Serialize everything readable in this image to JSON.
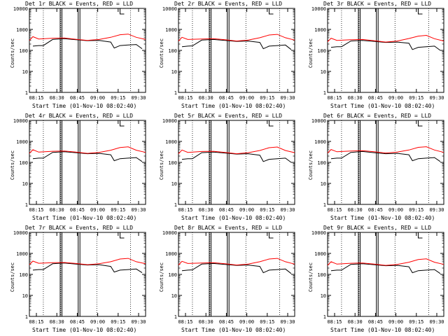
{
  "figure": {
    "y_label": "Counts/sec",
    "x_label": "Start Time (01-Nov-10 08:02:40)"
  },
  "colors": {
    "events": "#000000",
    "lld": "#ff0000",
    "axis": "#000000"
  },
  "chart_data": [
    {
      "type": "line",
      "title": "Det 1r BLACK = Events, RED = LLD",
      "xlabel": "Start Time (01-Nov-10 08:02:40)",
      "ylabel": "Counts/sec",
      "yscale": "log",
      "ylim": [
        1,
        10000
      ],
      "ytick_labels": [
        "1",
        "10",
        "100",
        "1000",
        "10000"
      ],
      "xtick_labels": [
        "08:15",
        "08:30",
        "08:45",
        "09:00",
        "09:15",
        "09:30"
      ],
      "series": [
        {
          "name": "Events",
          "color": "#000000",
          "x": [
            0.03,
            0.08,
            0.12,
            0.2,
            0.3,
            0.4,
            0.5,
            0.6,
            0.7,
            0.73,
            0.78,
            0.85,
            0.92,
            0.97
          ],
          "y": [
            160,
            170,
            170,
            330,
            360,
            320,
            290,
            300,
            250,
            130,
            170,
            180,
            190,
            120
          ]
        },
        {
          "name": "LLD",
          "color": "#ff0000",
          "x": [
            0.0,
            0.03,
            0.08,
            0.2,
            0.3,
            0.4,
            0.5,
            0.6,
            0.7,
            0.78,
            0.85,
            0.92,
            1.0
          ],
          "y": [
            300,
            450,
            350,
            380,
            390,
            340,
            300,
            330,
            420,
            560,
            600,
            420,
            330
          ]
        }
      ]
    },
    {
      "type": "line",
      "title": "Det 2r BLACK = Events, RED = LLD",
      "xlabel": "Start Time (01-Nov-10 08:02:40)",
      "ylabel": "Counts/sec",
      "yscale": "log",
      "ylim": [
        1,
        10000
      ],
      "ytick_labels": [
        "1",
        "10",
        "100",
        "1000",
        "10000"
      ],
      "xtick_labels": [
        "08:15",
        "08:30",
        "08:45",
        "09:00",
        "09:15",
        "09:30"
      ],
      "series": [
        {
          "name": "Events",
          "color": "#000000",
          "x": [
            0.03,
            0.08,
            0.12,
            0.2,
            0.3,
            0.4,
            0.5,
            0.6,
            0.7,
            0.73,
            0.78,
            0.85,
            0.92,
            0.97
          ],
          "y": [
            150,
            160,
            165,
            310,
            330,
            300,
            270,
            280,
            240,
            120,
            160,
            170,
            180,
            110
          ]
        },
        {
          "name": "LLD",
          "color": "#ff0000",
          "x": [
            0.0,
            0.03,
            0.08,
            0.2,
            0.3,
            0.4,
            0.5,
            0.6,
            0.7,
            0.78,
            0.85,
            0.92,
            1.0
          ],
          "y": [
            280,
            420,
            330,
            350,
            360,
            320,
            280,
            310,
            400,
            540,
            580,
            400,
            310
          ]
        }
      ]
    },
    {
      "type": "line",
      "title": "Det 3r BLACK = Events, RED = LLD",
      "xlabel": "Start Time (01-Nov-10 08:02:40)",
      "ylabel": "Counts/sec",
      "yscale": "log",
      "ylim": [
        1,
        10000
      ],
      "ytick_labels": [
        "1",
        "10",
        "100",
        "1000",
        "10000"
      ],
      "xtick_labels": [
        "08:15",
        "08:30",
        "08:45",
        "09:00",
        "09:15",
        "09:30"
      ],
      "series": [
        {
          "name": "Events",
          "color": "#000000",
          "x": [
            0.03,
            0.08,
            0.12,
            0.2,
            0.3,
            0.4,
            0.5,
            0.6,
            0.7,
            0.73,
            0.78,
            0.85,
            0.92,
            0.97
          ],
          "y": [
            140,
            150,
            150,
            280,
            300,
            270,
            240,
            250,
            220,
            110,
            140,
            150,
            160,
            100
          ]
        },
        {
          "name": "LLD",
          "color": "#ff0000",
          "x": [
            0.0,
            0.03,
            0.08,
            0.2,
            0.3,
            0.4,
            0.5,
            0.6,
            0.7,
            0.78,
            0.85,
            0.92,
            1.0
          ],
          "y": [
            260,
            380,
            300,
            320,
            330,
            290,
            250,
            280,
            370,
            480,
            520,
            360,
            280
          ]
        }
      ]
    },
    {
      "type": "line",
      "title": "Det 4r BLACK = Events, RED = LLD",
      "xlabel": "Start Time (01-Nov-10 08:02:40)",
      "ylabel": "Counts/sec",
      "yscale": "log",
      "ylim": [
        1,
        10000
      ],
      "ytick_labels": [
        "1",
        "10",
        "100",
        "1000",
        "10000"
      ],
      "xtick_labels": [
        "08:15",
        "08:30",
        "08:45",
        "09:00",
        "09:15",
        "09:30"
      ],
      "series": [
        {
          "name": "Events",
          "color": "#000000",
          "x": [
            0.03,
            0.08,
            0.12,
            0.2,
            0.3,
            0.4,
            0.5,
            0.6,
            0.7,
            0.73,
            0.78,
            0.85,
            0.92,
            0.97
          ],
          "y": [
            150,
            160,
            160,
            300,
            320,
            290,
            260,
            270,
            230,
            120,
            150,
            160,
            170,
            110
          ]
        },
        {
          "name": "LLD",
          "color": "#ff0000",
          "x": [
            0.0,
            0.03,
            0.08,
            0.2,
            0.3,
            0.4,
            0.5,
            0.6,
            0.7,
            0.78,
            0.85,
            0.92,
            1.0
          ],
          "y": [
            270,
            400,
            310,
            340,
            350,
            310,
            270,
            300,
            380,
            510,
            550,
            380,
            300
          ]
        }
      ]
    },
    {
      "type": "line",
      "title": "Det 5r BLACK = Events, RED = LLD",
      "xlabel": "Start Time (01-Nov-10 08:02:40)",
      "ylabel": "Counts/sec",
      "yscale": "log",
      "ylim": [
        1,
        10000
      ],
      "ytick_labels": [
        "1",
        "10",
        "100",
        "1000",
        "10000"
      ],
      "xtick_labels": [
        "08:15",
        "08:30",
        "08:45",
        "09:00",
        "09:15",
        "09:30"
      ],
      "series": [
        {
          "name": "Events",
          "color": "#000000",
          "x": [
            0.03,
            0.08,
            0.12,
            0.2,
            0.3,
            0.4,
            0.5,
            0.6,
            0.7,
            0.73,
            0.78,
            0.85,
            0.92,
            0.97
          ],
          "y": [
            140,
            150,
            150,
            290,
            310,
            280,
            250,
            260,
            220,
            110,
            140,
            150,
            160,
            100
          ]
        },
        {
          "name": "LLD",
          "color": "#ff0000",
          "x": [
            0.0,
            0.03,
            0.08,
            0.2,
            0.3,
            0.4,
            0.5,
            0.6,
            0.7,
            0.78,
            0.85,
            0.92,
            1.0
          ],
          "y": [
            260,
            390,
            300,
            330,
            340,
            300,
            260,
            290,
            370,
            500,
            540,
            370,
            290
          ]
        }
      ]
    },
    {
      "type": "line",
      "title": "Det 6r BLACK = Events, RED = LLD",
      "xlabel": "Start Time (01-Nov-10 08:02:40)",
      "ylabel": "Counts/sec",
      "yscale": "log",
      "ylim": [
        1,
        10000
      ],
      "ytick_labels": [
        "1",
        "10",
        "100",
        "1000",
        "10000"
      ],
      "xtick_labels": [
        "08:15",
        "08:30",
        "08:45",
        "09:00",
        "09:15",
        "09:30"
      ],
      "series": [
        {
          "name": "Events",
          "color": "#000000",
          "x": [
            0.03,
            0.08,
            0.12,
            0.2,
            0.3,
            0.4,
            0.5,
            0.6,
            0.7,
            0.73,
            0.78,
            0.85,
            0.92,
            0.97
          ],
          "y": [
            150,
            160,
            160,
            300,
            330,
            290,
            260,
            270,
            230,
            120,
            150,
            160,
            170,
            110
          ]
        },
        {
          "name": "LLD",
          "color": "#ff0000",
          "x": [
            0.0,
            0.03,
            0.08,
            0.2,
            0.3,
            0.4,
            0.5,
            0.6,
            0.7,
            0.78,
            0.85,
            0.92,
            1.0
          ],
          "y": [
            280,
            410,
            320,
            350,
            360,
            320,
            280,
            310,
            390,
            520,
            560,
            390,
            300
          ]
        }
      ]
    },
    {
      "type": "line",
      "title": "Det 7r BLACK = Events, RED = LLD",
      "xlabel": "Start Time (01-Nov-10 08:02:40)",
      "ylabel": "Counts/sec",
      "yscale": "log",
      "ylim": [
        1,
        10000
      ],
      "ytick_labels": [
        "1",
        "10",
        "100",
        "1000",
        "10000"
      ],
      "xtick_labels": [
        "08:15",
        "08:30",
        "08:45",
        "09:00",
        "09:15",
        "09:30"
      ],
      "series": [
        {
          "name": "Events",
          "color": "#000000",
          "x": [
            0.03,
            0.08,
            0.12,
            0.2,
            0.3,
            0.4,
            0.5,
            0.6,
            0.7,
            0.73,
            0.78,
            0.85,
            0.92,
            0.97
          ],
          "y": [
            160,
            170,
            170,
            320,
            350,
            310,
            280,
            290,
            240,
            130,
            160,
            170,
            180,
            120
          ]
        },
        {
          "name": "LLD",
          "color": "#ff0000",
          "x": [
            0.0,
            0.03,
            0.08,
            0.2,
            0.3,
            0.4,
            0.5,
            0.6,
            0.7,
            0.78,
            0.85,
            0.92,
            1.0
          ],
          "y": [
            290,
            430,
            340,
            360,
            370,
            330,
            290,
            320,
            400,
            540,
            580,
            400,
            320
          ]
        }
      ]
    },
    {
      "type": "line",
      "title": "Det 8r BLACK = Events, RED = LLD",
      "xlabel": "Start Time (01-Nov-10 08:02:40)",
      "ylabel": "Counts/sec",
      "yscale": "log",
      "ylim": [
        1,
        10000
      ],
      "ytick_labels": [
        "1",
        "10",
        "100",
        "1000",
        "10000"
      ],
      "xtick_labels": [
        "08:15",
        "08:30",
        "08:45",
        "09:00",
        "09:15",
        "09:30"
      ],
      "series": [
        {
          "name": "Events",
          "color": "#000000",
          "x": [
            0.03,
            0.08,
            0.12,
            0.2,
            0.3,
            0.4,
            0.5,
            0.6,
            0.7,
            0.73,
            0.78,
            0.85,
            0.92,
            0.97
          ],
          "y": [
            150,
            160,
            165,
            310,
            330,
            300,
            270,
            280,
            240,
            120,
            160,
            170,
            180,
            110
          ]
        },
        {
          "name": "LLD",
          "color": "#ff0000",
          "x": [
            0.0,
            0.03,
            0.08,
            0.2,
            0.3,
            0.4,
            0.5,
            0.6,
            0.7,
            0.78,
            0.85,
            0.92,
            1.0
          ],
          "y": [
            280,
            420,
            330,
            350,
            360,
            320,
            280,
            310,
            400,
            540,
            580,
            400,
            310
          ]
        }
      ]
    },
    {
      "type": "line",
      "title": "Det 9r BLACK = Events, RED = LLD",
      "xlabel": "Start Time (01-Nov-10 08:02:40)",
      "ylabel": "Counts/sec",
      "yscale": "log",
      "ylim": [
        1,
        10000
      ],
      "ytick_labels": [
        "1",
        "10",
        "100",
        "1000",
        "10000"
      ],
      "xtick_labels": [
        "08:15",
        "08:30",
        "08:45",
        "09:00",
        "09:15",
        "09:30"
      ],
      "series": [
        {
          "name": "Events",
          "color": "#000000",
          "x": [
            0.03,
            0.08,
            0.12,
            0.2,
            0.3,
            0.4,
            0.5,
            0.6,
            0.7,
            0.73,
            0.78,
            0.85,
            0.92,
            0.97
          ],
          "y": [
            150,
            160,
            160,
            300,
            320,
            290,
            260,
            270,
            230,
            120,
            150,
            160,
            170,
            110
          ]
        },
        {
          "name": "LLD",
          "color": "#ff0000",
          "x": [
            0.0,
            0.03,
            0.08,
            0.2,
            0.3,
            0.4,
            0.5,
            0.6,
            0.7,
            0.78,
            0.85,
            0.92,
            1.0
          ],
          "y": [
            270,
            400,
            310,
            340,
            350,
            310,
            270,
            300,
            380,
            510,
            550,
            380,
            300
          ]
        }
      ]
    }
  ]
}
